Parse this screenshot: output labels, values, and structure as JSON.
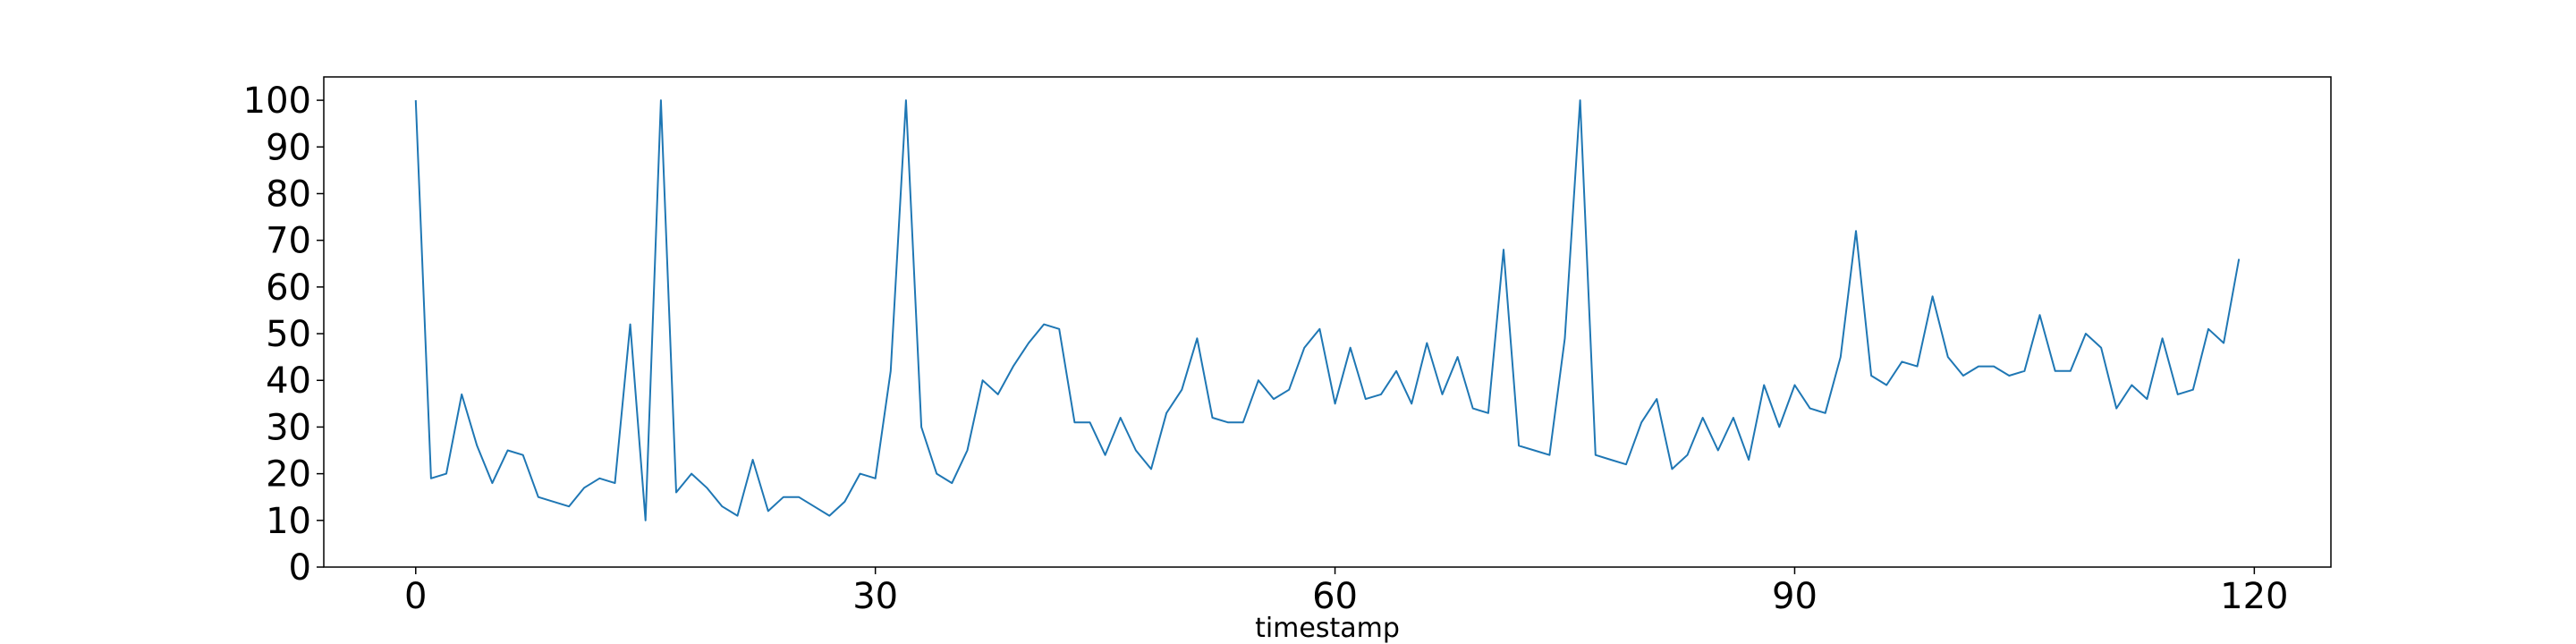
{
  "chart_data": {
    "type": "line",
    "title": "",
    "xlabel": "timestamp",
    "ylabel": "",
    "xlim": [
      -6,
      125
    ],
    "ylim": [
      0,
      105
    ],
    "x_ticks": [
      0,
      30,
      60,
      90,
      120
    ],
    "y_ticks": [
      0,
      10,
      20,
      30,
      40,
      50,
      60,
      70,
      80,
      90,
      100
    ],
    "grid": false,
    "legend": "none",
    "series": [
      {
        "color": "#1f77b4",
        "x": [
          0,
          1,
          2,
          3,
          4,
          5,
          6,
          7,
          8,
          9,
          10,
          11,
          12,
          13,
          14,
          15,
          16,
          17,
          18,
          19,
          20,
          21,
          22,
          23,
          24,
          25,
          26,
          27,
          28,
          29,
          30,
          31,
          32,
          33,
          34,
          35,
          36,
          37,
          38,
          39,
          40,
          41,
          42,
          43,
          44,
          45,
          46,
          47,
          48,
          49,
          50,
          51,
          52,
          53,
          54,
          55,
          56,
          57,
          58,
          59,
          60,
          61,
          62,
          63,
          64,
          65,
          66,
          67,
          68,
          69,
          70,
          71,
          72,
          73,
          74,
          75,
          76,
          77,
          78,
          79,
          80,
          81,
          82,
          83,
          84,
          85,
          86,
          87,
          88,
          89,
          90,
          91,
          92,
          93,
          94,
          95,
          96,
          97,
          98,
          99,
          100,
          101,
          102,
          103,
          104,
          105,
          106,
          107,
          108,
          109,
          110,
          111,
          112,
          113,
          114,
          115,
          116,
          117,
          118,
          119
        ],
        "values": [
          100,
          19,
          20,
          37,
          26,
          18,
          25,
          24,
          15,
          14,
          13,
          17,
          19,
          18,
          52,
          10,
          100,
          16,
          20,
          17,
          13,
          11,
          23,
          12,
          15,
          15,
          13,
          11,
          14,
          20,
          19,
          42,
          100,
          30,
          20,
          18,
          25,
          40,
          37,
          43,
          48,
          52,
          51,
          31,
          31,
          24,
          32,
          25,
          21,
          33,
          38,
          49,
          32,
          31,
          31,
          40,
          36,
          38,
          47,
          51,
          35,
          47,
          36,
          37,
          42,
          35,
          48,
          37,
          45,
          34,
          33,
          68,
          26,
          25,
          24,
          49,
          100,
          24,
          23,
          22,
          31,
          36,
          21,
          24,
          32,
          25,
          32,
          23,
          39,
          30,
          39,
          34,
          33,
          45,
          72,
          41,
          39,
          44,
          43,
          58,
          45,
          41,
          43,
          43,
          41,
          42,
          54,
          42,
          42,
          50,
          47,
          34,
          39,
          36,
          49,
          37,
          38,
          51,
          48,
          66
        ]
      }
    ]
  }
}
